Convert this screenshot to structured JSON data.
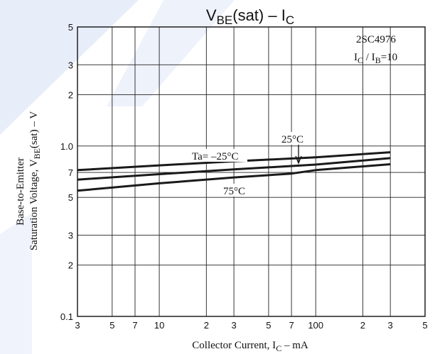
{
  "chart_data": {
    "type": "line",
    "title": "V_BE(sat) – I_C",
    "title_parts": {
      "main": "V",
      "sub1": "BE",
      "mid": "(sat) – I",
      "sub2": "C"
    },
    "xlabel": "Collector Current, I_C – mA",
    "xlabel_parts": {
      "pre": "Collector Current, I",
      "sub": "C",
      "post": " – mA"
    },
    "ylabel_line1": "Base-to-Emitter",
    "ylabel_line2": "Saturation Voltage, V_BE(sat) – V",
    "ylabel_line2_parts": {
      "pre": "Saturation Voltage, V",
      "sub": "BE",
      "post": "(sat) – V"
    },
    "x_scale": "log",
    "y_scale": "log",
    "xlim": [
      3,
      500
    ],
    "ylim": [
      0.1,
      5
    ],
    "x_ticks": [
      {
        "v": 3,
        "t": "3"
      },
      {
        "v": 5,
        "t": "5"
      },
      {
        "v": 7,
        "t": "7"
      },
      {
        "v": 10,
        "t": "10"
      },
      {
        "v": 20,
        "t": "2"
      },
      {
        "v": 30,
        "t": "3"
      },
      {
        "v": 50,
        "t": "5"
      },
      {
        "v": 70,
        "t": "7"
      },
      {
        "v": 100,
        "t": "100"
      },
      {
        "v": 200,
        "t": "2"
      },
      {
        "v": 300,
        "t": "3"
      },
      {
        "v": 500,
        "t": "5"
      }
    ],
    "y_ticks": [
      {
        "v": 0.1,
        "t": "0.1"
      },
      {
        "v": 0.2,
        "t": "2"
      },
      {
        "v": 0.3,
        "t": "3"
      },
      {
        "v": 0.5,
        "t": "5"
      },
      {
        "v": 0.7,
        "t": "7"
      },
      {
        "v": 1.0,
        "t": "1.0"
      },
      {
        "v": 2,
        "t": "2"
      },
      {
        "v": 3,
        "t": "3"
      },
      {
        "v": 5,
        "t": "5"
      }
    ],
    "grid": true,
    "series": [
      {
        "name": "Ta= –25°C",
        "x": [
          3,
          10,
          30,
          100,
          300
        ],
        "y": [
          0.722,
          0.77,
          0.813,
          0.859,
          0.92
        ]
      },
      {
        "name": "25°C",
        "x": [
          3,
          10,
          30,
          100,
          300
        ],
        "y": [
          0.635,
          0.684,
          0.729,
          0.778,
          0.849
        ]
      },
      {
        "name": "75°C",
        "x": [
          3,
          10,
          30,
          70,
          100,
          300
        ],
        "y": [
          0.547,
          0.604,
          0.654,
          0.689,
          0.722,
          0.782
        ]
      }
    ],
    "annotations": {
      "part": "2SC4976",
      "condition_parts": {
        "a": "I",
        "a_sub": "C",
        "mid": " / I",
        "b_sub": "B",
        "post": "=10"
      }
    },
    "colors": {
      "line": "#1a1a1a",
      "grid": "#222222",
      "watermark": "#e9effb"
    }
  }
}
